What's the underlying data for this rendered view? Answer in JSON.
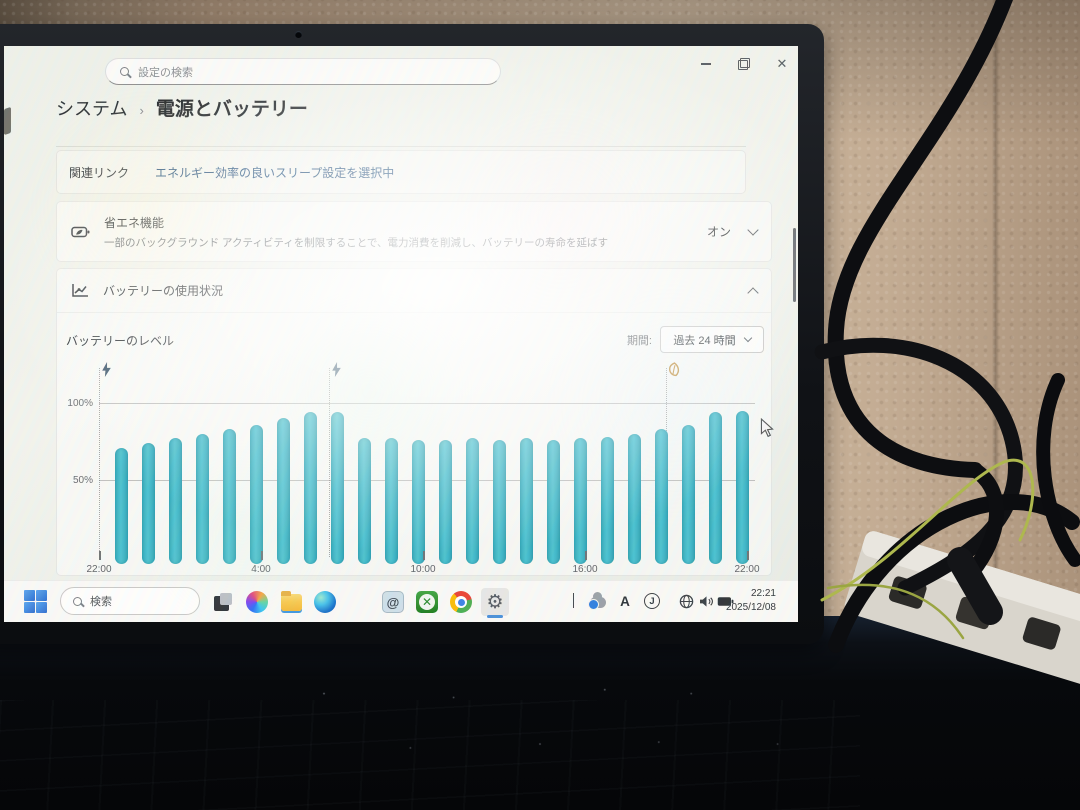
{
  "colors": {
    "accent": "#4a90d9",
    "bar_teal": "#3eb7c7",
    "link_blue": "#27537f",
    "leaf_orange": "#bd8a33",
    "charge_navy": "#3c566e"
  },
  "window": {
    "search_placeholder": "設定の検索",
    "controls": {
      "minimize": "minimize",
      "restore": "restore",
      "close": "✕"
    }
  },
  "breadcrumb": {
    "parent": "システム",
    "separator": "›",
    "current": "電源とバッテリー"
  },
  "related_links": {
    "label": "関連リンク",
    "link": "エネルギー効率の良いスリープ設定を選択中"
  },
  "energy_saver": {
    "title": "省エネ機能",
    "description": "一部のバックグラウンド アクティビティを制限することで、電力消費を削減し、バッテリーの寿命を延ばす",
    "value": "オン"
  },
  "battery_usage": {
    "title": "バッテリーの使用状況"
  },
  "battery_level": {
    "label": "バッテリーのレベル",
    "period_label": "期間:",
    "period_value": "過去 24 時間"
  },
  "chart_data": {
    "type": "bar",
    "title": "バッテリーのレベル",
    "unit": "%",
    "ylim": [
      0,
      100
    ],
    "y_ticks": [
      {
        "value": 100,
        "label": "100%"
      },
      {
        "value": 50,
        "label": "50%"
      }
    ],
    "x_span_hours": 24,
    "x_ticks": [
      {
        "hour": 0,
        "label": "22:00"
      },
      {
        "hour": 6,
        "label": "4:00"
      },
      {
        "hour": 12,
        "label": "10:00"
      },
      {
        "hour": 18,
        "label": "16:00"
      },
      {
        "hour": 24,
        "label": "22:00"
      }
    ],
    "values": [
      71,
      74,
      77,
      80,
      83,
      86,
      90,
      94,
      94,
      77,
      77,
      76,
      76,
      77,
      76,
      77,
      76,
      77,
      78,
      80,
      83,
      86,
      94,
      95
    ],
    "annotations": [
      {
        "type": "charging",
        "icon": "lightning-icon",
        "hour": 0
      },
      {
        "type": "charging",
        "icon": "lightning-icon",
        "hour": 8.5
      },
      {
        "type": "energy-saver-on",
        "icon": "leaf-icon",
        "hour": 21
      }
    ],
    "bar_color": "#3eb7c7",
    "grid": true,
    "legend": false
  },
  "taskbar": {
    "search_placeholder": "検索",
    "apps": [
      {
        "name": "task-view"
      },
      {
        "name": "copilot"
      },
      {
        "name": "file-explorer"
      },
      {
        "name": "edge"
      },
      {
        "name": "microsoft-store"
      },
      {
        "name": "mail-app",
        "glyph": "@"
      },
      {
        "name": "xbox"
      },
      {
        "name": "chrome"
      },
      {
        "name": "settings",
        "active": true
      }
    ],
    "tray": [
      {
        "name": "hidden-icons-chevron"
      },
      {
        "name": "cloud-sync-icon"
      },
      {
        "name": "ime-mode-indicator",
        "glyph": "A"
      },
      {
        "name": "assistant-icon",
        "glyph": "J"
      },
      {
        "name": "network-globe-icon"
      },
      {
        "name": "volume-icon"
      },
      {
        "name": "battery-icon"
      }
    ],
    "clock": {
      "time": "22:21",
      "date": "2025/12/08"
    }
  }
}
